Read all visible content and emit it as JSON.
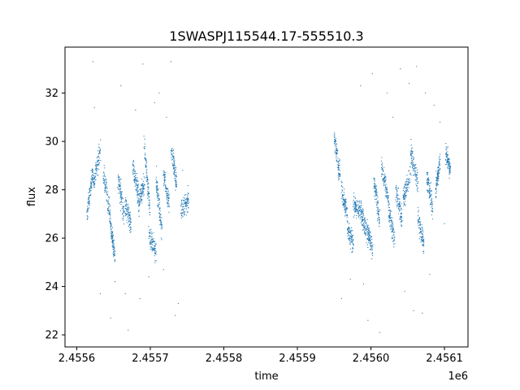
{
  "chart_data": {
    "type": "scatter",
    "title": "1SWASPJ115544.17-555510.3",
    "xlabel": "time",
    "ylabel": "flux",
    "x_offset_label": "1e6",
    "xlim": [
      2455584,
      2456132
    ],
    "ylim": [
      21.5,
      33.9
    ],
    "x_ticks": [
      2455600,
      2455700,
      2455800,
      2455900,
      2456000,
      2456100
    ],
    "x_tick_labels": [
      "2.4556",
      "2.4557",
      "2.4558",
      "2.4559",
      "2.4560",
      "2.4561"
    ],
    "y_ticks": [
      22,
      24,
      26,
      28,
      30,
      32
    ],
    "y_tick_labels": [
      "22",
      "24",
      "26",
      "28",
      "30",
      "32"
    ],
    "grid": false,
    "marker_color": "#1f77b4",
    "series": [
      {
        "segments": [
          {
            "x0": 2455614,
            "x1": 2455622,
            "y0": 27.0,
            "y1": 28.8
          },
          {
            "x0": 2455622,
            "x1": 2455632,
            "y0": 28.2,
            "y1": 29.6
          },
          {
            "x0": 2455636,
            "x1": 2455646,
            "y0": 28.8,
            "y1": 26.8
          },
          {
            "x0": 2455646,
            "x1": 2455652,
            "y0": 26.5,
            "y1": 25.2
          },
          {
            "x0": 2455656,
            "x1": 2455664,
            "y0": 28.6,
            "y1": 27.0
          },
          {
            "x0": 2455666,
            "x1": 2455674,
            "y0": 27.4,
            "y1": 26.6
          },
          {
            "x0": 2455676,
            "x1": 2455684,
            "y0": 29.0,
            "y1": 27.8
          },
          {
            "x0": 2455684,
            "x1": 2455692,
            "y0": 27.4,
            "y1": 28.4
          },
          {
            "x0": 2455692,
            "x1": 2455700,
            "y0": 29.8,
            "y1": 27.0
          },
          {
            "x0": 2455698,
            "x1": 2455708,
            "y0": 26.2,
            "y1": 25.4
          },
          {
            "x0": 2455708,
            "x1": 2455716,
            "y0": 28.4,
            "y1": 26.2
          },
          {
            "x0": 2455718,
            "x1": 2455726,
            "y0": 28.6,
            "y1": 27.4
          },
          {
            "x0": 2455728,
            "x1": 2455736,
            "y0": 29.8,
            "y1": 28.2
          },
          {
            "x0": 2455742,
            "x1": 2455752,
            "y0": 27.2,
            "y1": 27.6
          },
          {
            "x0": 2455950,
            "x1": 2455958,
            "y0": 30.2,
            "y1": 28.6
          },
          {
            "x0": 2455960,
            "x1": 2455968,
            "y0": 28.0,
            "y1": 27.0
          },
          {
            "x0": 2455968,
            "x1": 2455976,
            "y0": 26.4,
            "y1": 25.8
          },
          {
            "x0": 2455976,
            "x1": 2455986,
            "y0": 27.4,
            "y1": 27.2
          },
          {
            "x0": 2455986,
            "x1": 2455994,
            "y0": 27.2,
            "y1": 26.2
          },
          {
            "x0": 2455994,
            "x1": 2456002,
            "y0": 26.4,
            "y1": 25.6
          },
          {
            "x0": 2456004,
            "x1": 2456012,
            "y0": 28.4,
            "y1": 26.8
          },
          {
            "x0": 2456014,
            "x1": 2456024,
            "y0": 29.0,
            "y1": 27.6
          },
          {
            "x0": 2456024,
            "x1": 2456032,
            "y0": 27.2,
            "y1": 26.0
          },
          {
            "x0": 2456034,
            "x1": 2456042,
            "y0": 28.0,
            "y1": 26.8
          },
          {
            "x0": 2456044,
            "x1": 2456054,
            "y0": 27.6,
            "y1": 28.6
          },
          {
            "x0": 2456054,
            "x1": 2456064,
            "y0": 29.6,
            "y1": 28.2
          },
          {
            "x0": 2456064,
            "x1": 2456072,
            "y0": 26.8,
            "y1": 25.8
          },
          {
            "x0": 2456076,
            "x1": 2456084,
            "y0": 28.6,
            "y1": 27.2
          },
          {
            "x0": 2456088,
            "x1": 2456094,
            "y0": 28.0,
            "y1": 29.2
          },
          {
            "x0": 2456102,
            "x1": 2456108,
            "y0": 29.6,
            "y1": 28.8
          }
        ],
        "outliers": [
          [
            2455622,
            33.3
          ],
          [
            2455624,
            31.4
          ],
          [
            2455632,
            23.7
          ],
          [
            2455646,
            22.7
          ],
          [
            2455652,
            24.2
          ],
          [
            2455660,
            32.3
          ],
          [
            2455666,
            23.7
          ],
          [
            2455670,
            22.2
          ],
          [
            2455680,
            31.3
          ],
          [
            2455686,
            23.5
          ],
          [
            2455690,
            33.2
          ],
          [
            2455698,
            24.4
          ],
          [
            2455706,
            31.6
          ],
          [
            2455712,
            32.0
          ],
          [
            2455718,
            24.7
          ],
          [
            2455722,
            31.0
          ],
          [
            2455728,
            33.3
          ],
          [
            2455734,
            22.8
          ],
          [
            2455738,
            23.3
          ],
          [
            2455744,
            28.8
          ],
          [
            2455960,
            23.5
          ],
          [
            2455972,
            24.3
          ],
          [
            2455986,
            32.3
          ],
          [
            2455990,
            24.1
          ],
          [
            2455996,
            22.6
          ],
          [
            2456002,
            32.8
          ],
          [
            2456012,
            22.1
          ],
          [
            2456022,
            32.0
          ],
          [
            2456030,
            31.0
          ],
          [
            2456040,
            33.0
          ],
          [
            2456046,
            23.8
          ],
          [
            2456052,
            32.4
          ],
          [
            2456058,
            23.0
          ],
          [
            2456062,
            33.1
          ],
          [
            2456070,
            22.9
          ],
          [
            2456074,
            32.0
          ],
          [
            2456080,
            24.5
          ],
          [
            2456086,
            31.5
          ],
          [
            2456094,
            30.8
          ],
          [
            2456100,
            26.6
          ]
        ]
      }
    ]
  }
}
